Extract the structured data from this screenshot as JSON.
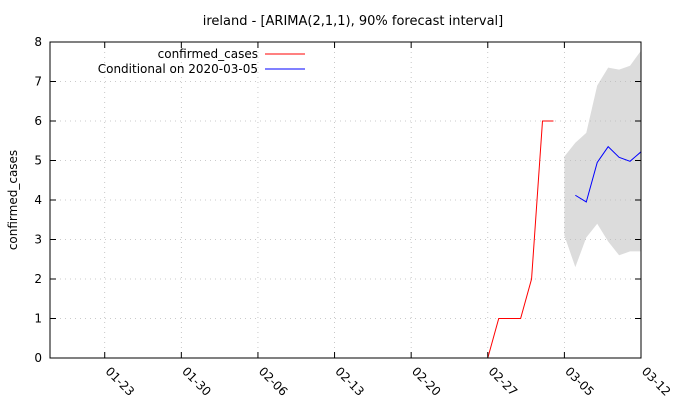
{
  "chart_data": {
    "type": "line",
    "title": "ireland -  [ARIMA(2,1,1), 90% forecast interval]",
    "xlabel": "",
    "ylabel": "confirmed_cases",
    "xlim": [
      "2020-01-18",
      "2020-03-12"
    ],
    "ylim": [
      0,
      8
    ],
    "grid": true,
    "legend_position": "top-left",
    "x_ticks": [
      "01-23",
      "01-30",
      "02-06",
      "02-13",
      "02-20",
      "02-27",
      "03-05",
      "03-12"
    ],
    "y_ticks": [
      0,
      1,
      2,
      3,
      4,
      5,
      6,
      7,
      8
    ],
    "series": [
      {
        "name": "confirmed_cases",
        "color": "#ff0000",
        "points": [
          [
            "2020-02-27",
            0
          ],
          [
            "2020-02-28",
            1
          ],
          [
            "2020-02-29",
            1
          ],
          [
            "2020-03-01",
            1
          ],
          [
            "2020-03-02",
            2
          ],
          [
            "2020-03-03",
            6
          ],
          [
            "2020-03-04",
            6
          ]
        ]
      },
      {
        "name": "Conditional on 2020-03-05",
        "color": "#0000ff",
        "points": [
          [
            "2020-03-06",
            4.12
          ],
          [
            "2020-03-07",
            3.95
          ],
          [
            "2020-03-08",
            4.95
          ],
          [
            "2020-03-09",
            5.35
          ],
          [
            "2020-03-10",
            5.08
          ],
          [
            "2020-03-11",
            4.98
          ],
          [
            "2020-03-12",
            5.22
          ]
        ]
      }
    ],
    "forecast_interval": {
      "color": "#dcdcdc",
      "upper": [
        [
          "2020-03-05",
          5.1
        ],
        [
          "2020-03-06",
          5.45
        ],
        [
          "2020-03-07",
          5.7
        ],
        [
          "2020-03-08",
          6.9
        ],
        [
          "2020-03-09",
          7.35
        ],
        [
          "2020-03-10",
          7.3
        ],
        [
          "2020-03-11",
          7.4
        ],
        [
          "2020-03-12",
          7.78
        ]
      ],
      "lower": [
        [
          "2020-03-05",
          3.1
        ],
        [
          "2020-03-06",
          2.3
        ],
        [
          "2020-03-07",
          3.05
        ],
        [
          "2020-03-08",
          3.4
        ],
        [
          "2020-03-09",
          2.95
        ],
        [
          "2020-03-10",
          2.6
        ],
        [
          "2020-03-11",
          2.7
        ],
        [
          "2020-03-12",
          2.7
        ]
      ]
    }
  }
}
